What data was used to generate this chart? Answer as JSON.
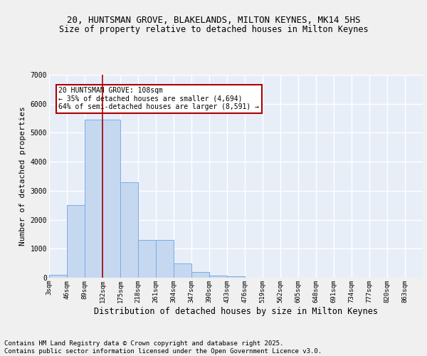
{
  "title_line1": "20, HUNTSMAN GROVE, BLAKELANDS, MILTON KEYNES, MK14 5HS",
  "title_line2": "Size of property relative to detached houses in Milton Keynes",
  "xlabel": "Distribution of detached houses by size in Milton Keynes",
  "ylabel": "Number of detached properties",
  "categories": [
    "3sqm",
    "46sqm",
    "89sqm",
    "132sqm",
    "175sqm",
    "218sqm",
    "261sqm",
    "304sqm",
    "347sqm",
    "390sqm",
    "433sqm",
    "476sqm",
    "519sqm",
    "562sqm",
    "605sqm",
    "648sqm",
    "691sqm",
    "734sqm",
    "777sqm",
    "820sqm",
    "863sqm"
  ],
  "values": [
    100,
    2500,
    5450,
    5450,
    3300,
    1300,
    1300,
    480,
    200,
    80,
    50,
    10,
    5,
    0,
    0,
    0,
    0,
    0,
    0,
    0,
    0
  ],
  "bar_color": "#c5d8f0",
  "bar_edge_color": "#7aace4",
  "vline_color": "#aa0000",
  "annotation_text": "20 HUNTSMAN GROVE: 108sqm\n← 35% of detached houses are smaller (4,694)\n64% of semi-detached houses are larger (8,591) →",
  "annotation_box_color": "#ffffff",
  "annotation_box_edge": "#aa0000",
  "ylim": [
    0,
    7000
  ],
  "yticks": [
    0,
    1000,
    2000,
    3000,
    4000,
    5000,
    6000,
    7000
  ],
  "footer_text": "Contains HM Land Registry data © Crown copyright and database right 2025.\nContains public sector information licensed under the Open Government Licence v3.0.",
  "bg_color": "#e8eef8",
  "grid_color": "#ffffff",
  "fig_bg_color": "#f0f0f0",
  "title_fontsize": 9,
  "axis_label_fontsize": 8,
  "tick_fontsize": 6.5,
  "footer_fontsize": 6.5,
  "annotation_fontsize": 7
}
